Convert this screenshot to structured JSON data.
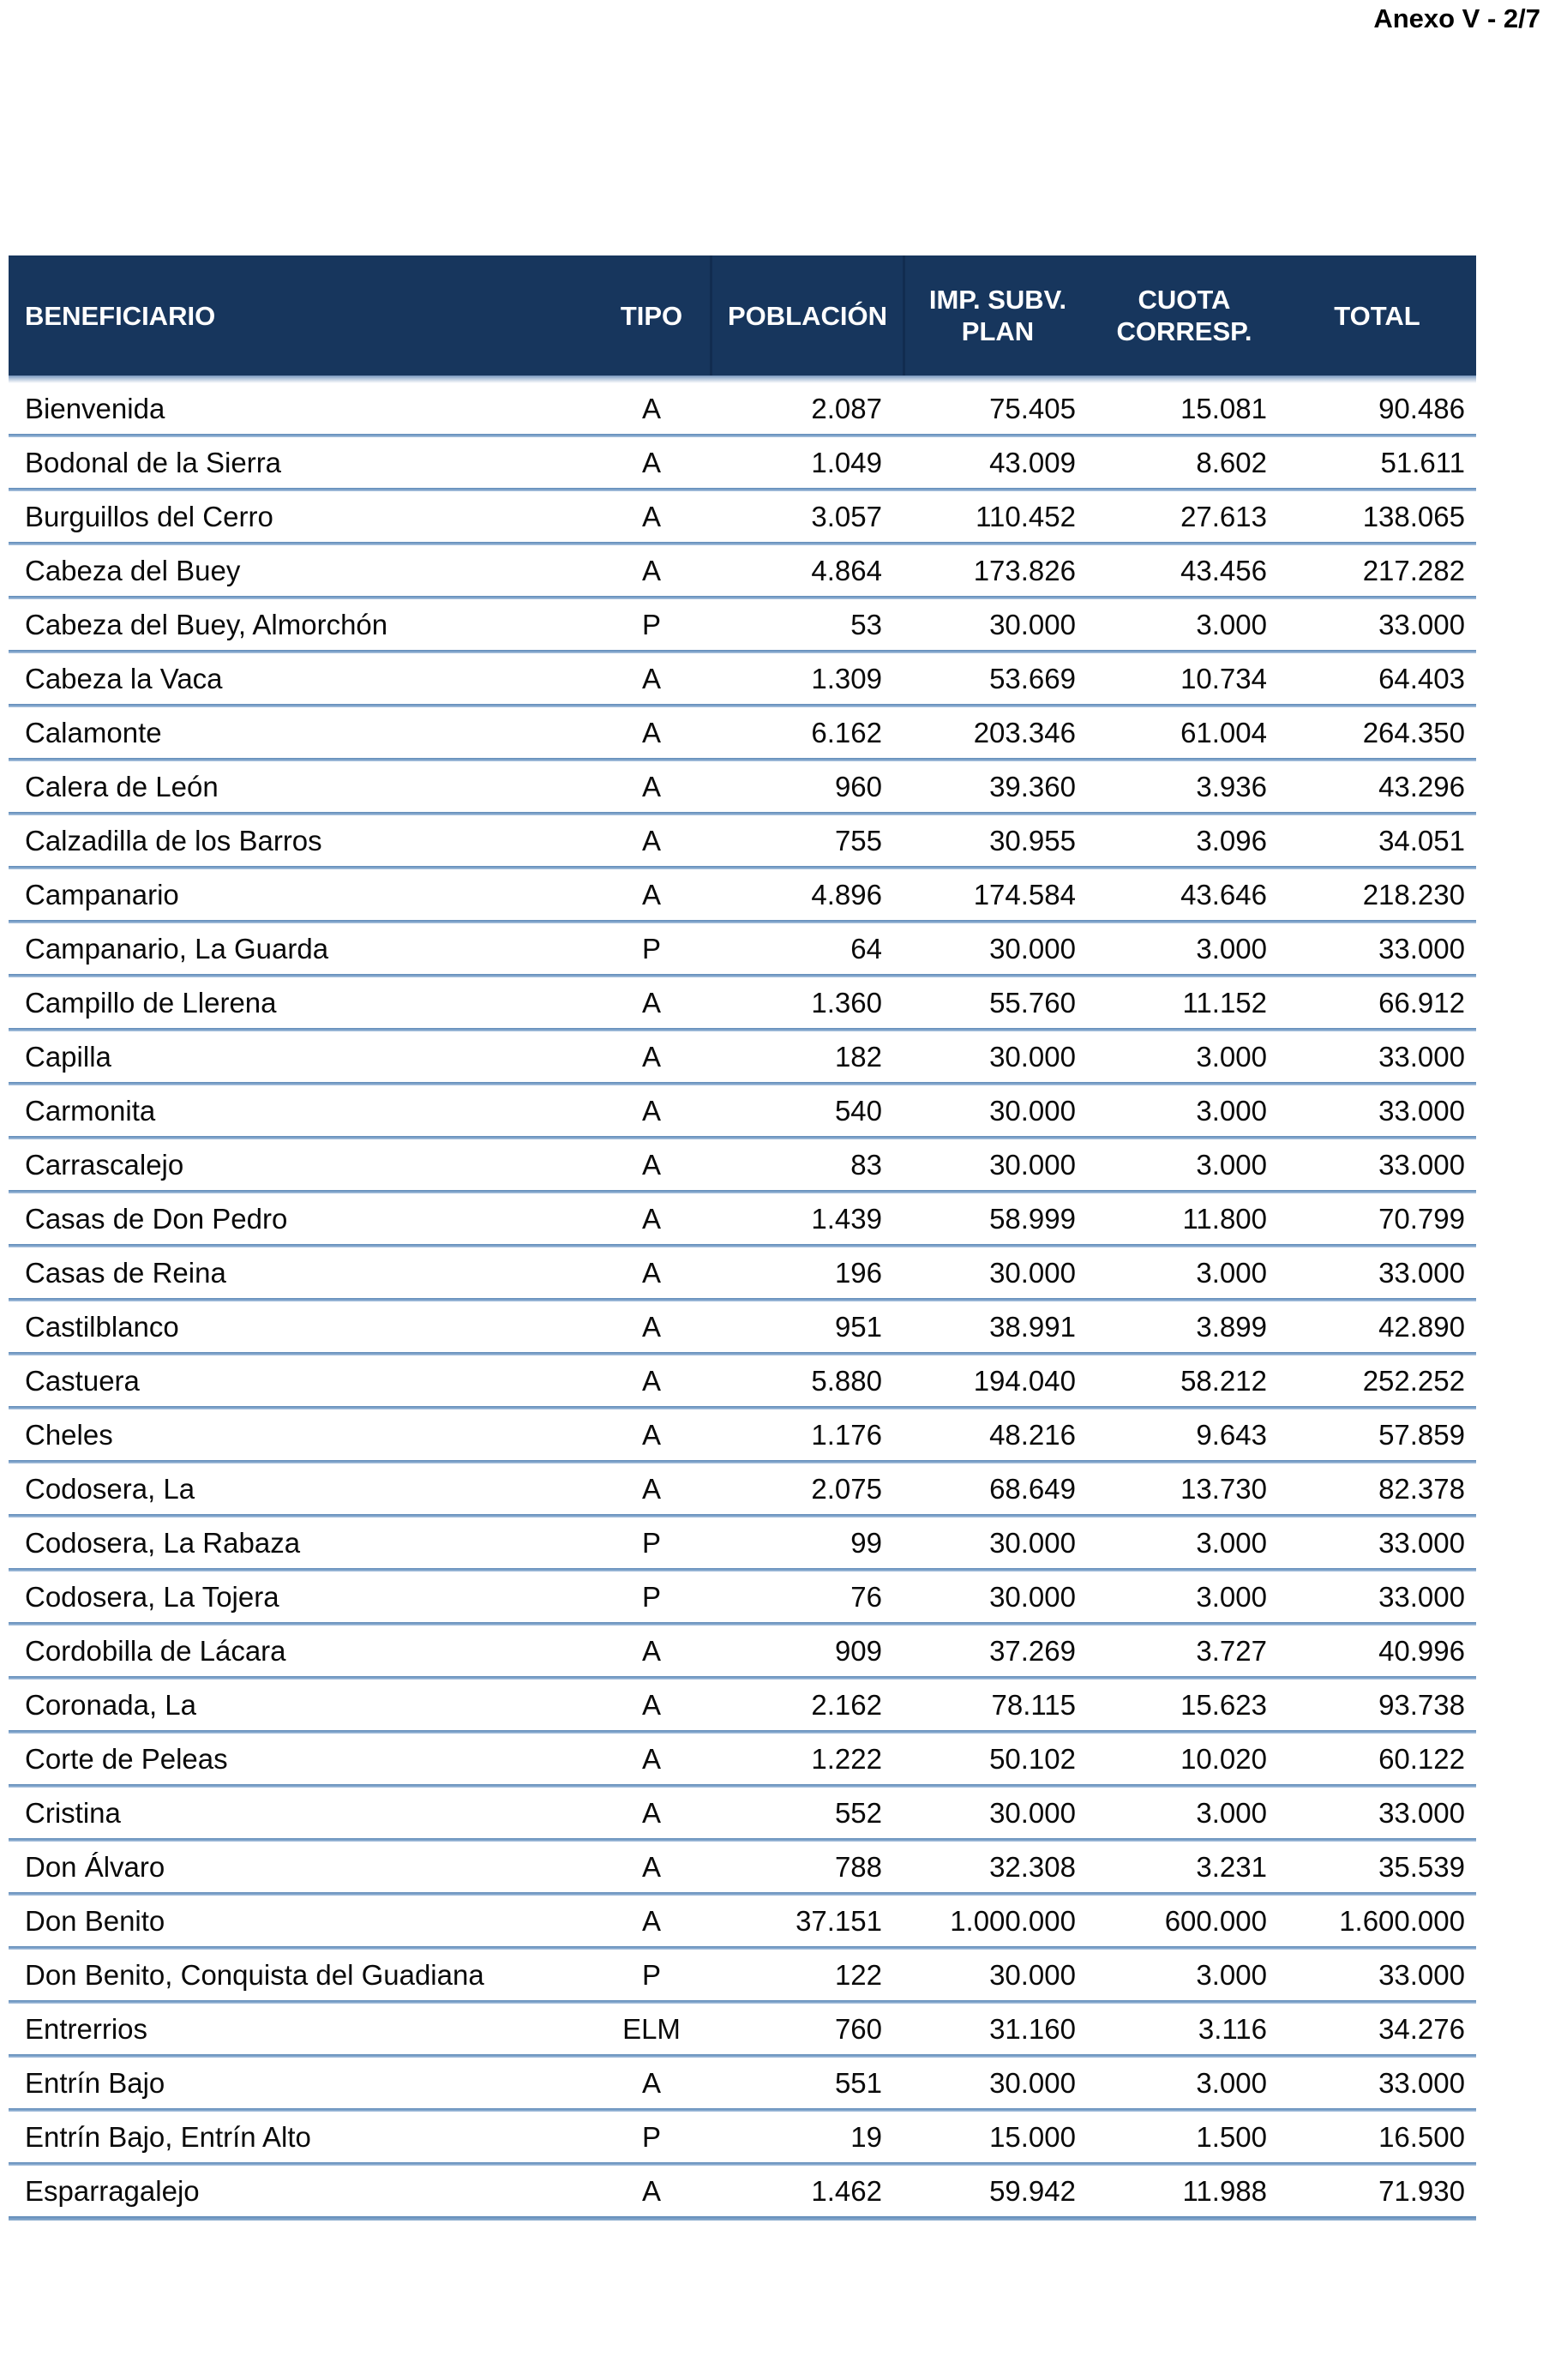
{
  "page": {
    "annex_label": "Anexo V - 2/7"
  },
  "colors": {
    "header_background": "#17365d",
    "header_text": "#ffffff",
    "row_separator": "#7ba2c9",
    "body_text": "#0a0a0a"
  },
  "table": {
    "columns": [
      {
        "key": "beneficiario",
        "label": "BENEFICIARIO"
      },
      {
        "key": "tipo",
        "label": "TIPO"
      },
      {
        "key": "poblacion",
        "label": "POBLACIÓN"
      },
      {
        "key": "imp_subv_plan",
        "label": "IMP. SUBV. PLAN"
      },
      {
        "key": "cuota_corresp",
        "label": "CUOTA CORRESP."
      },
      {
        "key": "total",
        "label": "TOTAL"
      }
    ],
    "rows": [
      [
        "Bienvenida",
        "A",
        "2.087",
        "75.405",
        "15.081",
        "90.486"
      ],
      [
        "Bodonal de la Sierra",
        "A",
        "1.049",
        "43.009",
        "8.602",
        "51.611"
      ],
      [
        "Burguillos del Cerro",
        "A",
        "3.057",
        "110.452",
        "27.613",
        "138.065"
      ],
      [
        "Cabeza del Buey",
        "A",
        "4.864",
        "173.826",
        "43.456",
        "217.282"
      ],
      [
        "Cabeza del Buey, Almorchón",
        "P",
        "53",
        "30.000",
        "3.000",
        "33.000"
      ],
      [
        "Cabeza la Vaca",
        "A",
        "1.309",
        "53.669",
        "10.734",
        "64.403"
      ],
      [
        "Calamonte",
        "A",
        "6.162",
        "203.346",
        "61.004",
        "264.350"
      ],
      [
        "Calera de León",
        "A",
        "960",
        "39.360",
        "3.936",
        "43.296"
      ],
      [
        "Calzadilla de los Barros",
        "A",
        "755",
        "30.955",
        "3.096",
        "34.051"
      ],
      [
        "Campanario",
        "A",
        "4.896",
        "174.584",
        "43.646",
        "218.230"
      ],
      [
        "Campanario, La Guarda",
        "P",
        "64",
        "30.000",
        "3.000",
        "33.000"
      ],
      [
        "Campillo de Llerena",
        "A",
        "1.360",
        "55.760",
        "11.152",
        "66.912"
      ],
      [
        "Capilla",
        "A",
        "182",
        "30.000",
        "3.000",
        "33.000"
      ],
      [
        "Carmonita",
        "A",
        "540",
        "30.000",
        "3.000",
        "33.000"
      ],
      [
        "Carrascalejo",
        "A",
        "83",
        "30.000",
        "3.000",
        "33.000"
      ],
      [
        "Casas de Don Pedro",
        "A",
        "1.439",
        "58.999",
        "11.800",
        "70.799"
      ],
      [
        "Casas de Reina",
        "A",
        "196",
        "30.000",
        "3.000",
        "33.000"
      ],
      [
        "Castilblanco",
        "A",
        "951",
        "38.991",
        "3.899",
        "42.890"
      ],
      [
        "Castuera",
        "A",
        "5.880",
        "194.040",
        "58.212",
        "252.252"
      ],
      [
        "Cheles",
        "A",
        "1.176",
        "48.216",
        "9.643",
        "57.859"
      ],
      [
        "Codosera, La",
        "A",
        "2.075",
        "68.649",
        "13.730",
        "82.378"
      ],
      [
        "Codosera, La Rabaza",
        "P",
        "99",
        "30.000",
        "3.000",
        "33.000"
      ],
      [
        "Codosera, La Tojera",
        "P",
        "76",
        "30.000",
        "3.000",
        "33.000"
      ],
      [
        "Cordobilla de Lácara",
        "A",
        "909",
        "37.269",
        "3.727",
        "40.996"
      ],
      [
        "Coronada, La",
        "A",
        "2.162",
        "78.115",
        "15.623",
        "93.738"
      ],
      [
        "Corte de Peleas",
        "A",
        "1.222",
        "50.102",
        "10.020",
        "60.122"
      ],
      [
        "Cristina",
        "A",
        "552",
        "30.000",
        "3.000",
        "33.000"
      ],
      [
        "Don Álvaro",
        "A",
        "788",
        "32.308",
        "3.231",
        "35.539"
      ],
      [
        "Don Benito",
        "A",
        "37.151",
        "1.000.000",
        "600.000",
        "1.600.000"
      ],
      [
        "Don Benito, Conquista del Guadiana",
        "P",
        "122",
        "30.000",
        "3.000",
        "33.000"
      ],
      [
        "Entrerrios",
        "ELM",
        "760",
        "31.160",
        "3.116",
        "34.276"
      ],
      [
        "Entrín Bajo",
        "A",
        "551",
        "30.000",
        "3.000",
        "33.000"
      ],
      [
        "Entrín Bajo, Entrín Alto",
        "P",
        "19",
        "15.000",
        "1.500",
        "16.500"
      ],
      [
        "Esparragalejo",
        "A",
        "1.462",
        "59.942",
        "11.988",
        "71.930"
      ]
    ]
  }
}
